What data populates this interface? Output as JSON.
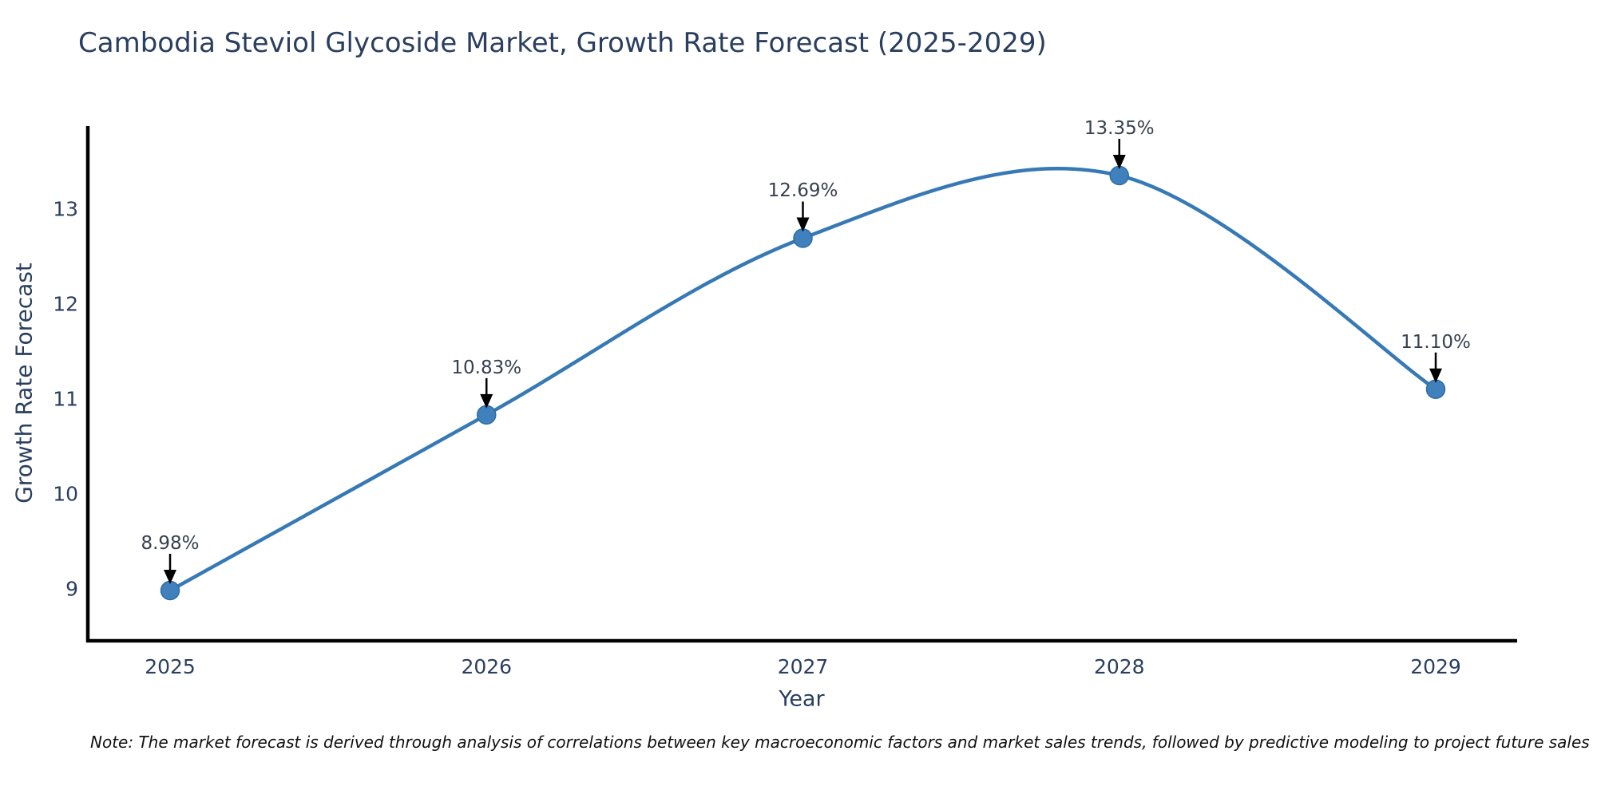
{
  "figure": {
    "title": "Cambodia Steviol Glycoside Market, Growth Rate Forecast (2025-2029)",
    "note": "Note: The market forecast is derived through analysis of correlations between key macroeconomic factors and market sales trends, followed by predictive modeling to project future sales"
  },
  "chart_data": {
    "type": "line",
    "title": "Cambodia Steviol Glycoside Market, Growth Rate Forecast (2025-2029)",
    "x": [
      2025,
      2026,
      2027,
      2028,
      2029
    ],
    "series": [
      {
        "name": "Growth Rate Forecast",
        "values": [
          8.98,
          10.83,
          12.69,
          13.35,
          11.1
        ]
      }
    ],
    "point_labels": [
      "8.98%",
      "10.83%",
      "12.69%",
      "13.35%",
      "11.10%"
    ],
    "xlabel": "Year",
    "ylabel": "Growth Rate Forecast",
    "x_tick_labels": [
      "2025",
      "2026",
      "2027",
      "2028",
      "2029"
    ],
    "y_tick_values": [
      9,
      10,
      11,
      12,
      13
    ],
    "ylim": [
      8.45,
      13.87
    ],
    "xlim": [
      2024.74,
      2029.26
    ],
    "grid": false,
    "legend_position": "none",
    "line_shape": "spline",
    "markers": true,
    "line_color": "#3779b5",
    "marker_color": "#4081bd",
    "marker_edge_color": "#2e6da4",
    "axis_spine_color": "#000000",
    "annotation_arrow_color": "#000000",
    "text_color": "#2a3f5f"
  }
}
